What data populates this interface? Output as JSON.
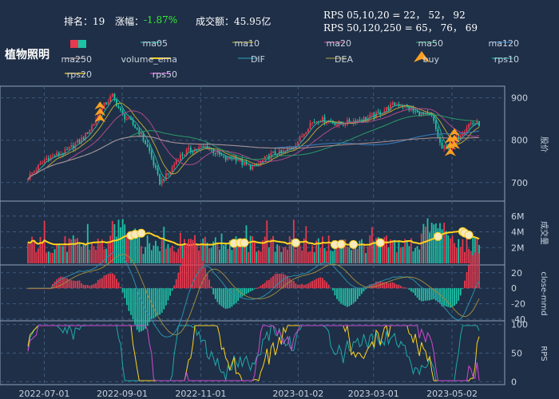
{
  "header": {
    "rank_label": "排名：19",
    "change_label": "涨幅：",
    "change_value": "-1.87%",
    "amount_label": "成交额：45.95亿",
    "rps_line1": "RPS 05,10,20 = 22， 52， 92",
    "rps_line2": "RPS 50,120,250 = 65， 76， 69",
    "stock_name": "植物照明"
  },
  "colors": {
    "background": "#1f2f47",
    "up": "#e8394d",
    "down": "#1cc3a6",
    "volume_ema": "#ffd21f",
    "buy": "#ffa020",
    "change_value": "#33ee33"
  },
  "chart_data": {
    "type": "candlestick",
    "dates": [
      "2022-06-20",
      "2022-06-27",
      "2022-07-04",
      "2022-07-11",
      "2022-07-18",
      "2022-07-25",
      "2022-08-01",
      "2022-08-08",
      "2022-08-15",
      "2022-08-22",
      "2022-08-29",
      "2022-09-05",
      "2022-09-12",
      "2022-09-19",
      "2022-09-26",
      "2022-10-03",
      "2022-10-10",
      "2022-10-17",
      "2022-10-24",
      "2022-10-31",
      "2022-11-07",
      "2022-11-14",
      "2022-11-21",
      "2022-11-28",
      "2022-12-05",
      "2022-12-12",
      "2022-12-19",
      "2022-12-26",
      "2023-01-02",
      "2023-01-09",
      "2023-01-16",
      "2023-01-23",
      "2023-01-30",
      "2023-02-06",
      "2023-02-13",
      "2023-02-20",
      "2023-02-27",
      "2023-03-06",
      "2023-03-13",
      "2023-03-20",
      "2023-03-27",
      "2023-04-03",
      "2023-04-10",
      "2023-04-17",
      "2023-04-24",
      "2023-05-01",
      "2023-05-08",
      "2023-05-15",
      "2023-05-22"
    ],
    "close": [
      712,
      735,
      758,
      765,
      772,
      790,
      808,
      840,
      880,
      905,
      860,
      842,
      815,
      770,
      700,
      722,
      760,
      775,
      780,
      785,
      770,
      755,
      760,
      742,
      735,
      752,
      768,
      770,
      782,
      805,
      840,
      850,
      845,
      838,
      842,
      848,
      852,
      860,
      872,
      885,
      882,
      868,
      860,
      855,
      780,
      785,
      815,
      840,
      838
    ],
    "x_ticks": [
      "2022-07-01",
      "2022-09-01",
      "2022-11-01",
      "2023-01-02",
      "2023-03-01",
      "2023-05-02"
    ],
    "x_tick_pos": [
      0.026,
      0.15,
      0.275,
      0.43,
      0.55,
      0.675
    ],
    "price_ticks": [
      700,
      800,
      900
    ],
    "price_range": [
      660,
      920
    ],
    "price_axis_label": "股价",
    "volume_ticks": [
      "2M",
      "4M",
      "6M"
    ],
    "volume_tick_values": [
      2,
      4,
      6
    ],
    "volume_range": [
      0,
      7.5
    ],
    "volume_axis_label": "成交量",
    "macd_ticks": [
      -40,
      -20,
      0,
      20
    ],
    "macd_range": [
      -42,
      28
    ],
    "macd_axis_label": "close-mmd",
    "rps_ticks": [
      0,
      50,
      100
    ],
    "rps_range": [
      -5,
      105
    ],
    "rps_axis_label": "RPS",
    "legend": [
      "ma05",
      "ma10",
      "ma20",
      "ma50",
      "ma120",
      "ma250",
      "volume_ema",
      "DIF",
      "DEA",
      "buy",
      "rps10",
      "rps20",
      "rps50"
    ],
    "legend_colors": [
      "#2ab3a0",
      "#b8a63a",
      "#b04a8a",
      "#2a9a68",
      "#3a7fc0",
      "#b09090",
      "#ffd21f",
      "#2a8faa",
      "#9a8a40",
      "#ffa020",
      "#1faaaa",
      "#ffd21f",
      "#d04ad0"
    ],
    "buy_signals": [
      0.158,
      0.935,
      0.945
    ],
    "volume_ema_markers": [
      0.165,
      0.172,
      0.18,
      0.33,
      0.338,
      0.345,
      0.43,
      0.49,
      0.5,
      0.52,
      0.565,
      0.655,
      0.695,
      0.7,
      0.705
    ]
  }
}
